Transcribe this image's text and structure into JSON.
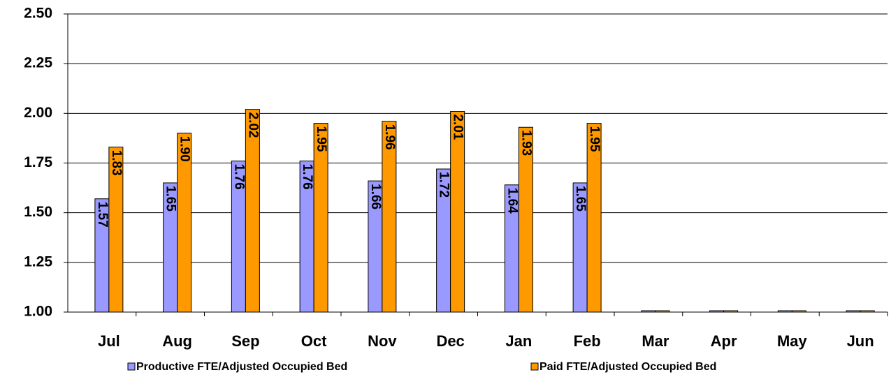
{
  "chart_data": {
    "type": "bar",
    "categories": [
      "Jul",
      "Aug",
      "Sep",
      "Oct",
      "Nov",
      "Dec",
      "Jan",
      "Feb",
      "Mar",
      "Apr",
      "May",
      "Jun"
    ],
    "series": [
      {
        "name": "Productive FTE/Adjusted Occupied Bed",
        "color": "#9999ff",
        "values": [
          1.57,
          1.65,
          1.76,
          1.76,
          1.66,
          1.72,
          1.64,
          1.65,
          1.0,
          1.0,
          1.0,
          1.0
        ],
        "value_labels": [
          "1.57",
          "1.65",
          "1.76",
          "1.76",
          "1.66",
          "1.72",
          "1.64",
          "1.65",
          null,
          null,
          null,
          null
        ]
      },
      {
        "name": "Paid FTE/Adjusted Occupied Bed",
        "color": "#ff9900",
        "values": [
          1.83,
          1.9,
          2.02,
          1.95,
          1.96,
          2.01,
          1.93,
          1.95,
          1.0,
          1.0,
          1.0,
          1.0
        ],
        "value_labels": [
          "1.83",
          "1.90",
          "2.02",
          "1.95",
          "1.96",
          "2.01",
          "1.93",
          "1.95",
          null,
          null,
          null,
          null
        ]
      }
    ],
    "ylim": [
      1.0,
      2.5
    ],
    "yticks": [
      {
        "value": 1.0,
        "label": "1.00"
      },
      {
        "value": 1.25,
        "label": "1.25"
      },
      {
        "value": 1.5,
        "label": "1.50"
      },
      {
        "value": 1.75,
        "label": "1.75"
      },
      {
        "value": 2.0,
        "label": "2.00"
      },
      {
        "value": 2.25,
        "label": "2.25"
      },
      {
        "value": 2.5,
        "label": "2.50"
      }
    ],
    "grid": true
  }
}
